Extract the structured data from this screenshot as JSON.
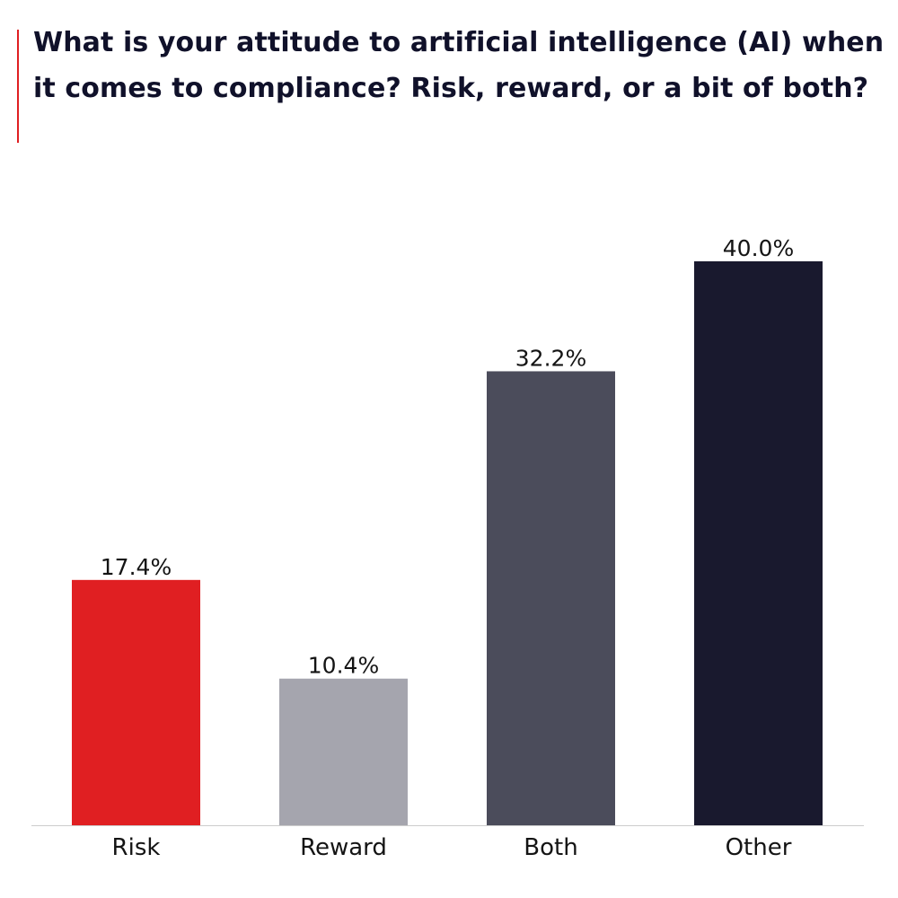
{
  "chart_data": {
    "type": "bar",
    "title": "What is your attitude to artificial intelligence (AI) when it comes to compliance? Risk, reward, or a bit of both?",
    "xlabel": "",
    "ylabel": "",
    "categories": [
      "Risk",
      "Reward",
      "Both",
      "Other"
    ],
    "values": [
      17.4,
      10.4,
      32.2,
      40.0
    ],
    "value_labels": [
      "17.4%",
      "10.4%",
      "32.2%",
      "40.0%"
    ],
    "unit": "%",
    "ylim": [
      0,
      40
    ],
    "grid": false,
    "legend": "none",
    "bar_colors": [
      "#e01f22",
      "#a5a5ae",
      "#4b4c5b",
      "#19192e"
    ]
  },
  "colors": {
    "accent": "#e01f22",
    "title": "#10112a",
    "axis": "#cccccc",
    "text": "#141414"
  }
}
